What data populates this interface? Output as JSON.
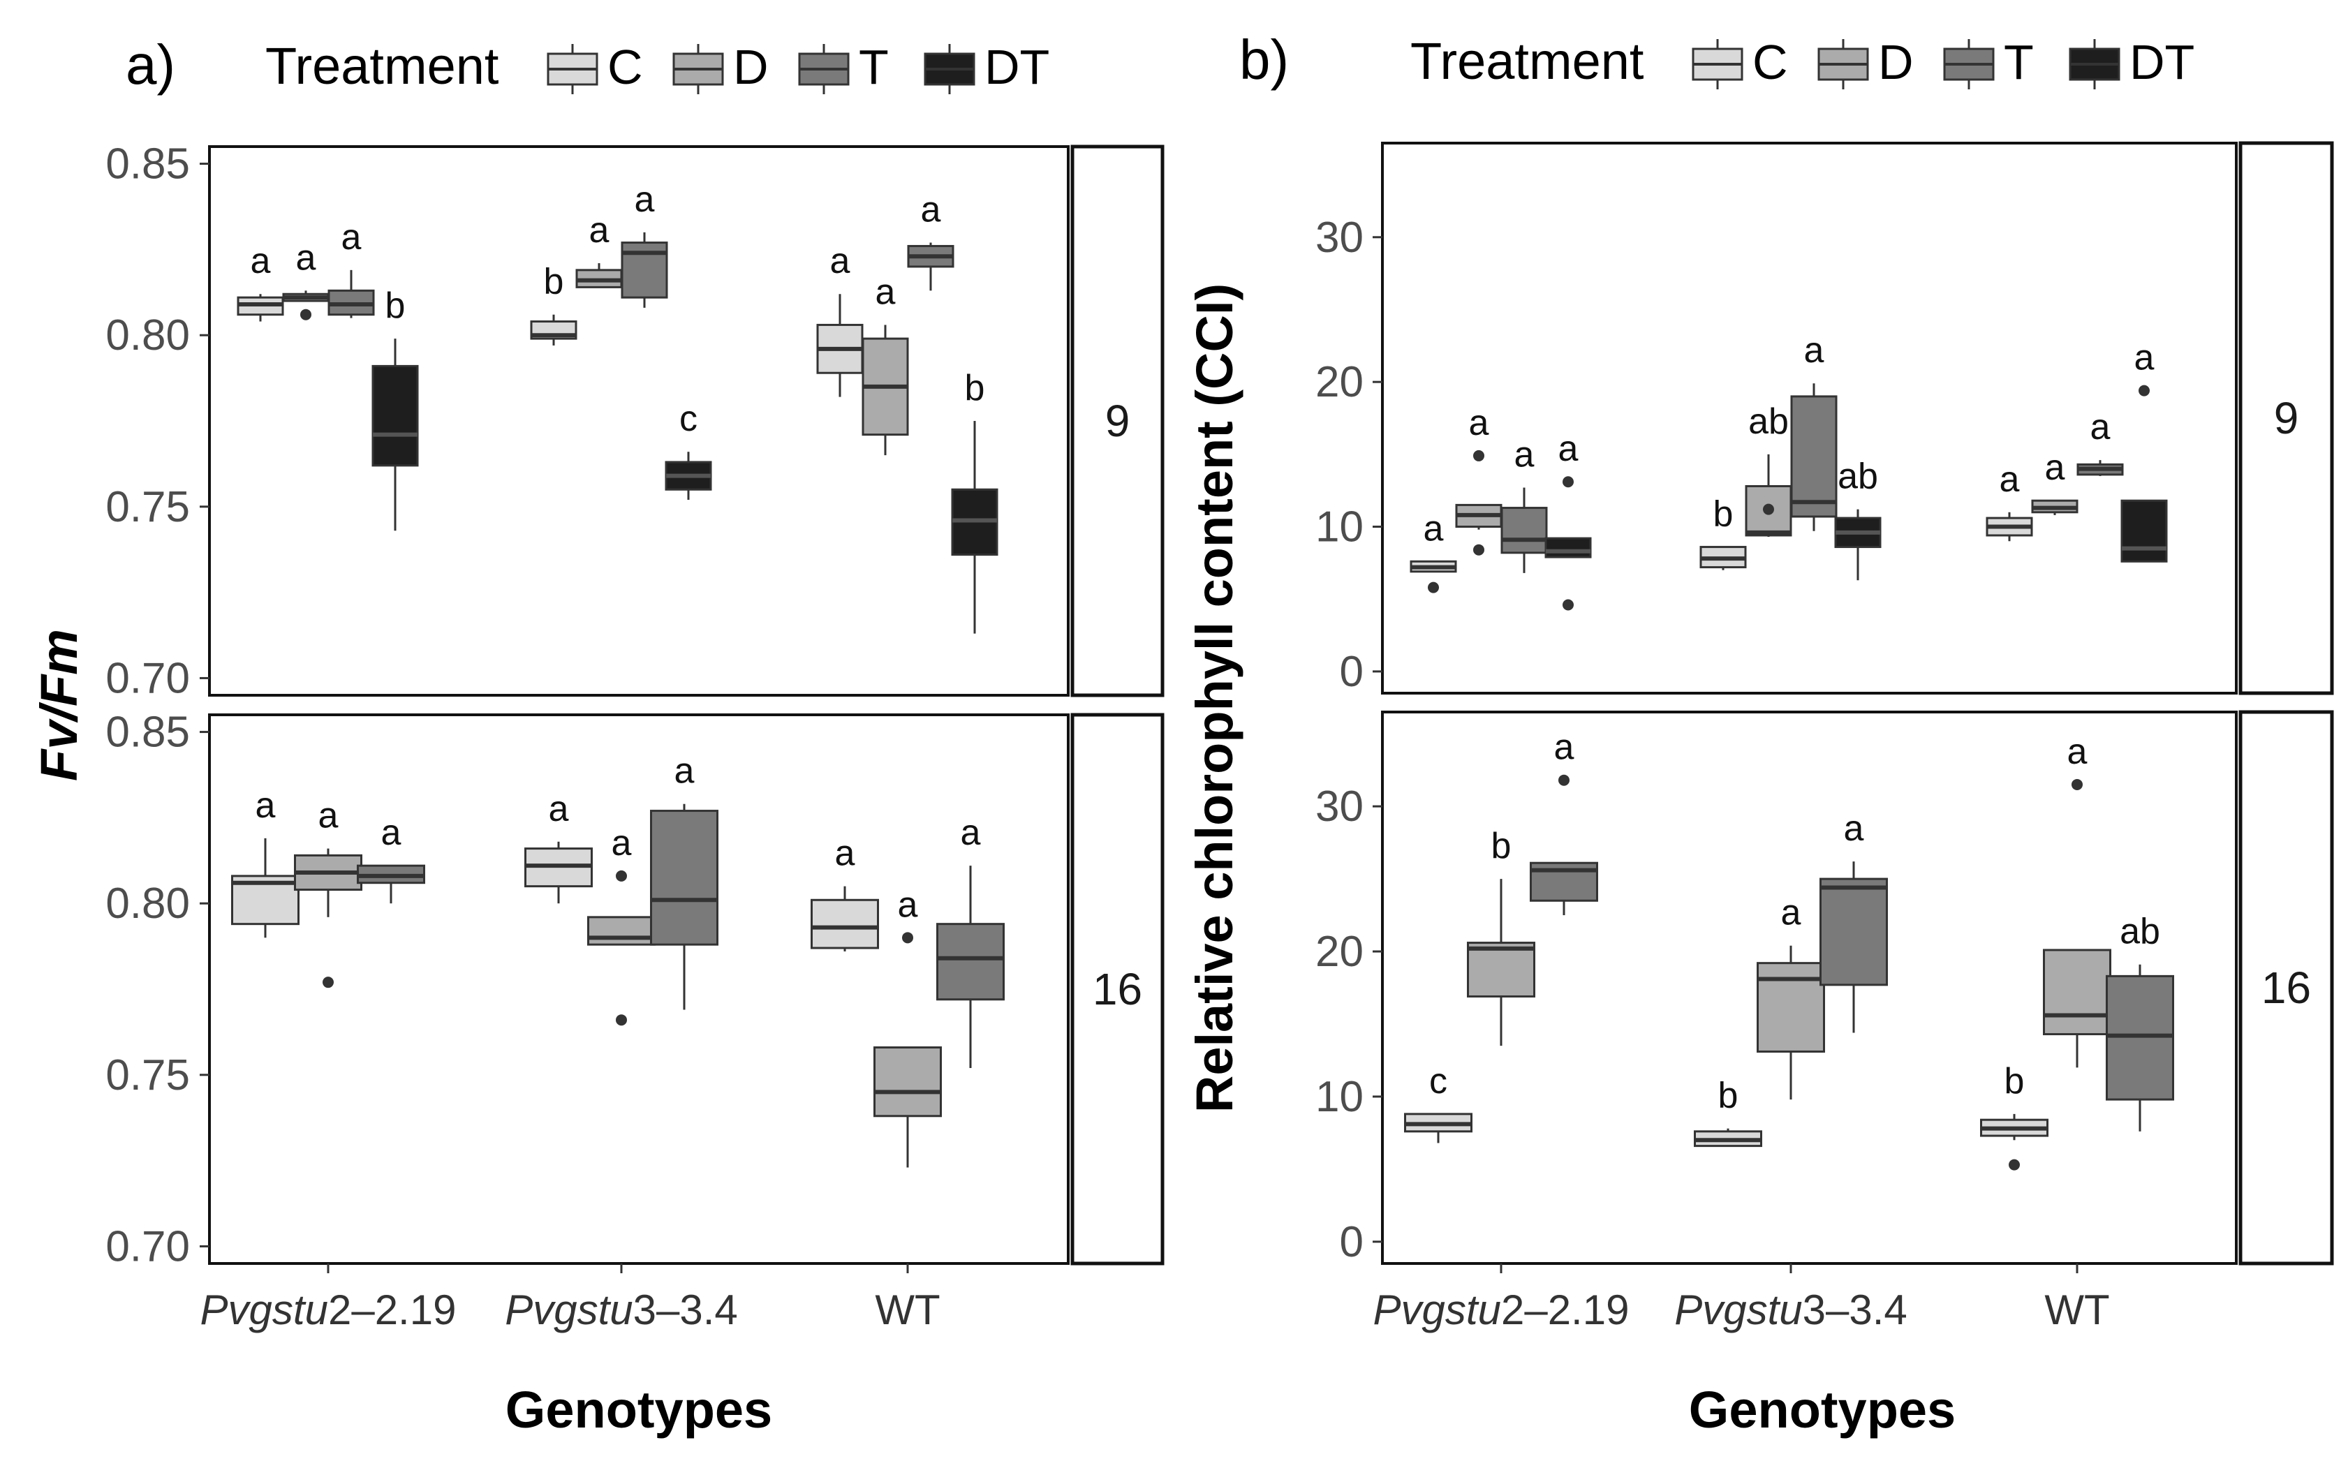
{
  "chart_data": [
    {
      "type": "box",
      "panel_tag": "a)",
      "legend": {
        "title": "Treatment",
        "entries": [
          {
            "key": "C",
            "label": "C",
            "color": "#d9d9d9"
          },
          {
            "key": "D",
            "label": "D",
            "color": "#ababab"
          },
          {
            "key": "T",
            "label": "T",
            "color": "#7a7a7a"
          },
          {
            "key": "DT",
            "label": "DT",
            "color": "#1e1e1e"
          }
        ]
      },
      "ylabel": "Fv/Fm",
      "xlabel": "Genotypes",
      "categories": [
        {
          "prefix": "Pvgstu",
          "num": "2",
          "suffix": "–2.19",
          "italic": true
        },
        {
          "prefix": "Pvgstu",
          "num": "3",
          "suffix": "–3.4",
          "italic": true
        },
        {
          "prefix": "",
          "num": "",
          "suffix": "WT",
          "italic": false
        }
      ],
      "ylim": [
        0.695,
        0.855
      ],
      "yticks": [
        0.7,
        0.75,
        0.8,
        0.85
      ],
      "ytick_labels": [
        "0.70",
        "0.75",
        "0.80",
        "0.85"
      ],
      "facets": [
        {
          "strip": "9",
          "boxes": [
            {
              "group": 0,
              "treatment": "C",
              "min": 0.804,
              "q1": 0.806,
              "median": 0.809,
              "q3": 0.811,
              "max": 0.812,
              "outliers": [],
              "letter": "a"
            },
            {
              "group": 0,
              "treatment": "D",
              "min": 0.81,
              "q1": 0.81,
              "median": 0.811,
              "q3": 0.812,
              "max": 0.813,
              "outliers": [
                0.806
              ],
              "letter": "a"
            },
            {
              "group": 0,
              "treatment": "T",
              "min": 0.805,
              "q1": 0.806,
              "median": 0.809,
              "q3": 0.813,
              "max": 0.819,
              "outliers": [],
              "letter": "a"
            },
            {
              "group": 0,
              "treatment": "DT",
              "min": 0.743,
              "q1": 0.762,
              "median": 0.771,
              "q3": 0.791,
              "max": 0.799,
              "outliers": [],
              "letter": "b"
            },
            {
              "group": 1,
              "treatment": "C",
              "min": 0.797,
              "q1": 0.799,
              "median": 0.8,
              "q3": 0.804,
              "max": 0.806,
              "outliers": [],
              "letter": "b"
            },
            {
              "group": 1,
              "treatment": "D",
              "min": 0.814,
              "q1": 0.814,
              "median": 0.816,
              "q3": 0.819,
              "max": 0.821,
              "outliers": [],
              "letter": "a"
            },
            {
              "group": 1,
              "treatment": "T",
              "min": 0.808,
              "q1": 0.811,
              "median": 0.824,
              "q3": 0.827,
              "max": 0.83,
              "outliers": [],
              "letter": "a"
            },
            {
              "group": 1,
              "treatment": "DT",
              "min": 0.752,
              "q1": 0.755,
              "median": 0.759,
              "q3": 0.763,
              "max": 0.766,
              "outliers": [],
              "letter": "c"
            },
            {
              "group": 2,
              "treatment": "C",
              "min": 0.782,
              "q1": 0.789,
              "median": 0.796,
              "q3": 0.803,
              "max": 0.812,
              "outliers": [],
              "letter": "a"
            },
            {
              "group": 2,
              "treatment": "D",
              "min": 0.765,
              "q1": 0.771,
              "median": 0.785,
              "q3": 0.799,
              "max": 0.803,
              "outliers": [],
              "letter": "a"
            },
            {
              "group": 2,
              "treatment": "T",
              "min": 0.813,
              "q1": 0.82,
              "median": 0.823,
              "q3": 0.826,
              "max": 0.827,
              "outliers": [],
              "letter": "a"
            },
            {
              "group": 2,
              "treatment": "DT",
              "min": 0.713,
              "q1": 0.736,
              "median": 0.746,
              "q3": 0.755,
              "max": 0.775,
              "outliers": [],
              "letter": "b"
            }
          ]
        },
        {
          "strip": "16",
          "boxes": [
            {
              "group": 0,
              "treatment": "C",
              "min": 0.79,
              "q1": 0.794,
              "median": 0.806,
              "q3": 0.808,
              "max": 0.819,
              "outliers": [],
              "letter": "a"
            },
            {
              "group": 0,
              "treatment": "D",
              "min": 0.796,
              "q1": 0.804,
              "median": 0.809,
              "q3": 0.814,
              "max": 0.816,
              "outliers": [
                0.777
              ],
              "letter": "a"
            },
            {
              "group": 0,
              "treatment": "T",
              "min": 0.8,
              "q1": 0.806,
              "median": 0.808,
              "q3": 0.811,
              "max": 0.811,
              "outliers": [],
              "letter": "a"
            },
            {
              "group": 1,
              "treatment": "C",
              "min": 0.8,
              "q1": 0.805,
              "median": 0.811,
              "q3": 0.816,
              "max": 0.818,
              "outliers": [],
              "letter": "a"
            },
            {
              "group": 1,
              "treatment": "D",
              "min": 0.788,
              "q1": 0.788,
              "median": 0.79,
              "q3": 0.796,
              "max": 0.796,
              "outliers": [
                0.808,
                0.766
              ],
              "letter": "a"
            },
            {
              "group": 1,
              "treatment": "T",
              "min": 0.769,
              "q1": 0.788,
              "median": 0.801,
              "q3": 0.827,
              "max": 0.829,
              "outliers": [],
              "letter": "a"
            },
            {
              "group": 2,
              "treatment": "C",
              "min": 0.786,
              "q1": 0.787,
              "median": 0.793,
              "q3": 0.801,
              "max": 0.805,
              "outliers": [],
              "letter": "a"
            },
            {
              "group": 2,
              "treatment": "D",
              "min": 0.723,
              "q1": 0.738,
              "median": 0.745,
              "q3": 0.758,
              "max": 0.758,
              "outliers": [
                0.79
              ],
              "letter": "a"
            },
            {
              "group": 2,
              "treatment": "T",
              "min": 0.752,
              "q1": 0.772,
              "median": 0.784,
              "q3": 0.794,
              "max": 0.811,
              "outliers": [],
              "letter": "a"
            }
          ]
        }
      ]
    },
    {
      "type": "box",
      "panel_tag": "b)",
      "legend": {
        "title": "Treatment",
        "entries": [
          {
            "key": "C",
            "label": "C",
            "color": "#d9d9d9"
          },
          {
            "key": "D",
            "label": "D",
            "color": "#ababab"
          },
          {
            "key": "T",
            "label": "T",
            "color": "#7a7a7a"
          },
          {
            "key": "DT",
            "label": "DT",
            "color": "#1e1e1e"
          }
        ]
      },
      "ylabel": "Relative chlorophyll content (CCI)",
      "xlabel": "Genotypes",
      "categories": [
        {
          "prefix": "Pvgstu",
          "num": "2",
          "suffix": "–2.19",
          "italic": true
        },
        {
          "prefix": "Pvgstu",
          "num": "3",
          "suffix": "–3.4",
          "italic": true
        },
        {
          "prefix": "",
          "num": "",
          "suffix": "WT",
          "italic": false
        }
      ],
      "ylim": [
        -1.5,
        36.5
      ],
      "yticks": [
        0,
        10,
        20,
        30
      ],
      "ytick_labels": [
        "0",
        "10",
        "20",
        "30"
      ],
      "facets": [
        {
          "strip": "9",
          "boxes": [
            {
              "group": 0,
              "treatment": "C",
              "min": 6.9,
              "q1": 6.9,
              "median": 7.2,
              "q3": 7.6,
              "max": 7.6,
              "outliers": [
                5.8
              ],
              "letter": "a"
            },
            {
              "group": 0,
              "treatment": "D",
              "min": 9.8,
              "q1": 10.0,
              "median": 10.8,
              "q3": 11.5,
              "max": 11.5,
              "outliers": [
                14.9,
                8.4
              ],
              "letter": "a"
            },
            {
              "group": 0,
              "treatment": "T",
              "min": 6.8,
              "q1": 8.2,
              "median": 9.1,
              "q3": 11.3,
              "max": 12.7,
              "outliers": [],
              "letter": "a"
            },
            {
              "group": 0,
              "treatment": "DT",
              "min": 7.9,
              "q1": 7.9,
              "median": 8.3,
              "q3": 9.2,
              "max": 9.2,
              "outliers": [
                13.1,
                4.6
              ],
              "letter": "a"
            },
            {
              "group": 1,
              "treatment": "C",
              "min": 7.0,
              "q1": 7.2,
              "median": 7.8,
              "q3": 8.6,
              "max": 8.6,
              "outliers": [],
              "letter": "b"
            },
            {
              "group": 1,
              "treatment": "D",
              "min": 9.3,
              "q1": 9.4,
              "median": 9.6,
              "q3": 12.8,
              "max": 15.0,
              "outliers": [
                11.2
              ],
              "letter": "ab"
            },
            {
              "group": 1,
              "treatment": "T",
              "min": 9.7,
              "q1": 10.7,
              "median": 11.7,
              "q3": 19.0,
              "max": 19.9,
              "outliers": [],
              "letter": "a"
            },
            {
              "group": 1,
              "treatment": "DT",
              "min": 6.3,
              "q1": 8.6,
              "median": 9.6,
              "q3": 10.6,
              "max": 11.2,
              "outliers": [],
              "letter": "ab"
            },
            {
              "group": 2,
              "treatment": "C",
              "min": 9.0,
              "q1": 9.4,
              "median": 10.0,
              "q3": 10.6,
              "max": 11.0,
              "outliers": [],
              "letter": "a"
            },
            {
              "group": 2,
              "treatment": "D",
              "min": 10.8,
              "q1": 11.0,
              "median": 11.3,
              "q3": 11.8,
              "max": 11.8,
              "outliers": [],
              "letter": "a"
            },
            {
              "group": 2,
              "treatment": "T",
              "min": 13.5,
              "q1": 13.6,
              "median": 14.0,
              "q3": 14.3,
              "max": 14.6,
              "outliers": [],
              "letter": "a"
            },
            {
              "group": 2,
              "treatment": "DT",
              "min": 7.6,
              "q1": 7.6,
              "median": 8.5,
              "q3": 11.8,
              "max": 11.8,
              "outliers": [
                19.4
              ],
              "letter": "a"
            }
          ]
        },
        {
          "strip": "16",
          "boxes": [
            {
              "group": 0,
              "treatment": "C",
              "min": 6.8,
              "q1": 7.6,
              "median": 8.1,
              "q3": 8.8,
              "max": 8.8,
              "outliers": [],
              "letter": "c"
            },
            {
              "group": 0,
              "treatment": "D",
              "min": 13.5,
              "q1": 16.9,
              "median": 20.2,
              "q3": 20.6,
              "max": 25.0,
              "outliers": [],
              "letter": "b"
            },
            {
              "group": 0,
              "treatment": "T",
              "min": 22.5,
              "q1": 23.5,
              "median": 25.6,
              "q3": 26.1,
              "max": 26.1,
              "outliers": [
                31.8
              ],
              "letter": "a"
            },
            {
              "group": 1,
              "treatment": "C",
              "min": 6.6,
              "q1": 6.6,
              "median": 7.0,
              "q3": 7.6,
              "max": 7.8,
              "outliers": [],
              "letter": "b"
            },
            {
              "group": 1,
              "treatment": "D",
              "min": 9.8,
              "q1": 13.1,
              "median": 18.1,
              "q3": 19.2,
              "max": 20.4,
              "outliers": [],
              "letter": "a"
            },
            {
              "group": 1,
              "treatment": "T",
              "min": 14.4,
              "q1": 17.7,
              "median": 24.4,
              "q3": 25.0,
              "max": 26.2,
              "outliers": [],
              "letter": "a"
            },
            {
              "group": 2,
              "treatment": "C",
              "min": 7.0,
              "q1": 7.3,
              "median": 7.8,
              "q3": 8.4,
              "max": 8.8,
              "outliers": [
                5.3
              ],
              "letter": "b"
            },
            {
              "group": 2,
              "treatment": "D",
              "min": 12.0,
              "q1": 14.3,
              "median": 15.6,
              "q3": 20.1,
              "max": 20.1,
              "outliers": [
                31.5
              ],
              "letter": "a"
            },
            {
              "group": 2,
              "treatment": "T",
              "min": 7.6,
              "q1": 9.8,
              "median": 14.2,
              "q3": 18.3,
              "max": 19.1,
              "outliers": [],
              "letter": "ab"
            }
          ]
        }
      ]
    }
  ]
}
